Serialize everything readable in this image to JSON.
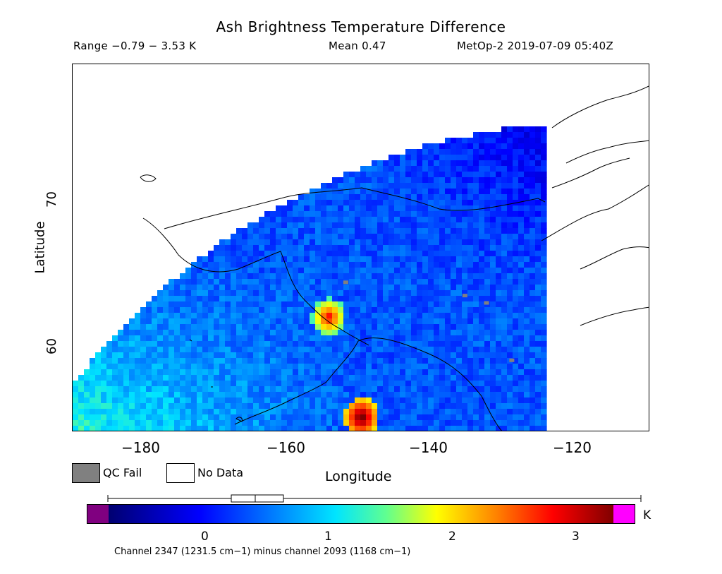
{
  "header": {
    "title": "Ash Brightness Temperature Difference",
    "range_text": "Range −0.79 − 3.53 K",
    "mean_text": "Mean 0.47",
    "satellite_text": "MetOp-2 2019-07-09 05:40Z"
  },
  "axes": {
    "xlabel": "Longitude",
    "ylabel": "Latitude",
    "xticks": [
      "−180",
      "−160",
      "−140",
      "−120"
    ],
    "yticks": [
      "70",
      "60"
    ],
    "lon_range": [
      -190,
      -110
    ],
    "lat_range": [
      54,
      79
    ]
  },
  "legend": {
    "qc_fail_label": "QC Fail",
    "qc_fail_color": "#808080",
    "no_data_label": "No Data",
    "no_data_color": "#ffffff"
  },
  "colorbar": {
    "ticks": [
      "0",
      "1",
      "2",
      "3"
    ],
    "unit": "K",
    "under_color": "#800080",
    "over_color": "#ff00ff",
    "caption": "Channel 2347 (1231.5 cm−1) minus channel 2093 (1168 cm−1)",
    "range": [
      -0.79,
      3.53
    ],
    "mean": 0.47
  },
  "features": {
    "hotspots": [
      {
        "name": "ash-plume-north",
        "lon": -154.5,
        "lat": 61.8,
        "peak_value": 2.9
      },
      {
        "name": "ash-plume-south",
        "lon": -150.0,
        "lat": 55.0,
        "peak_value": 3.5
      }
    ]
  }
}
